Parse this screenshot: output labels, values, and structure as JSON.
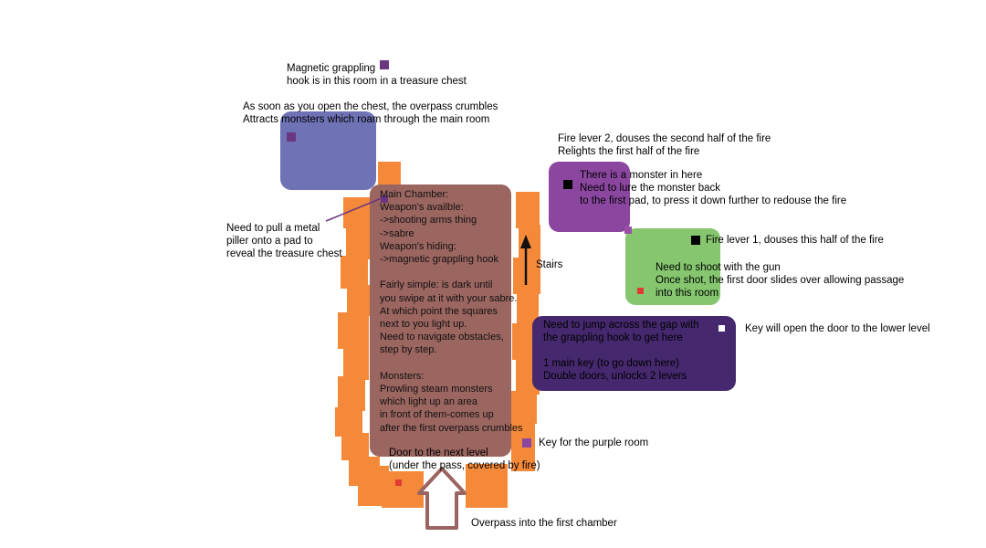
{
  "colors": {
    "orange_wall": "#f5893a",
    "main_chamber": "#9b6560",
    "blue_room": "#6f73b6",
    "purple_room": "#8b47a0",
    "green_room": "#85c66f",
    "dark_room": "#45286e",
    "marker_purple": "#6a3680",
    "marker_black": "#000000",
    "marker_red": "#e03a35",
    "marker_white": "#ffffff",
    "overpass_arrow": "#9a6461"
  },
  "labels": {
    "hook_title": "Magnetic grappling\nhook is in this room in a treasure chest",
    "chest_note": "As soon as you open the chest, the overpass crumbles\nAttracts monsters which roam through the main room",
    "fire_lever2": "Fire lever 2, douses the second half of the fire\nRelights the first half of the fire",
    "monster_room": "There is a monster in here\nNeed to lure the monster back\nto the first pad, to press it down further to redouse the fire",
    "pillar_note": "Need to pull a metal\npiller onto a pad to\nreveal the treasure chest",
    "fire_lever1": "Fire lever 1, douses this half of the fire",
    "gun_note": "Need to shoot with the gun\nOnce shot, the first door slides over allowing passage\ninto this room",
    "stairs": "Stairs",
    "jump_note": "Need to jump across the gap with\nthe grappling hook to get here\n\n1 main key (to go down here)\nDouble doors, unlocks 2 levers",
    "key_note": "Key will open the door to the lower level",
    "purple_key": "Key for the purple room",
    "door_note": "Door to the next level\n(under the pass, covered by fire)",
    "overpass": "Overpass into the first chamber"
  },
  "main_chamber": {
    "text": "Main Chamber:\nWeapon's availble:\n->shooting arms thing\n->sabre\nWeapon's hiding:\n->magnetic grappling hook\n\nFairly simple: is dark until\nyou swipe at it with your sabre.\nAt which point the squares\nnext to you light up.\nNeed to navigate obstacles,\nstep by step.\n\nMonsters:\nProwling steam monsters\nwhich light up an area\nin front of them-comes up\nafter the first overpass crumbles"
  }
}
